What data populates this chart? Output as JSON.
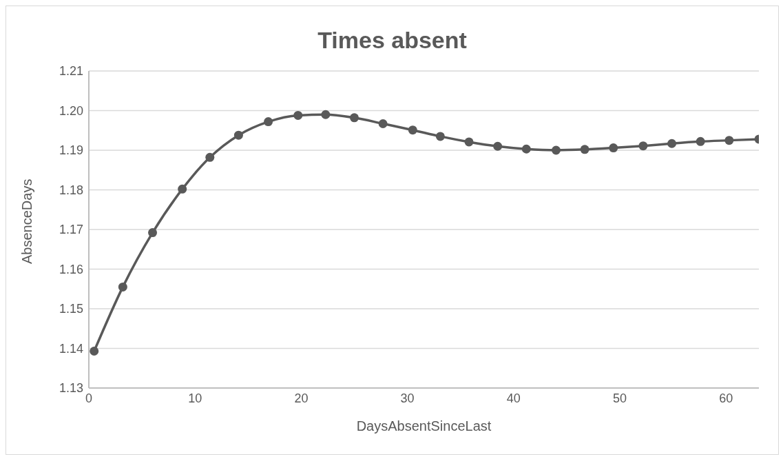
{
  "chart_data": {
    "type": "line",
    "title": "Times absent",
    "xlabel": "DaysAbsentSinceLast",
    "ylabel": "AbsenceDays",
    "x": [
      0.5,
      3.2,
      6.0,
      8.8,
      11.4,
      14.1,
      16.9,
      19.7,
      22.3,
      25.0,
      27.7,
      30.5,
      33.1,
      35.8,
      38.5,
      41.2,
      44.0,
      46.7,
      49.4,
      52.2,
      54.9,
      57.6,
      60.3,
      63.1
    ],
    "series": [
      {
        "color": "#595959",
        "values": [
          1.1393,
          1.1555,
          1.1692,
          1.1802,
          1.1882,
          1.1938,
          1.1972,
          1.1988,
          1.199,
          1.1982,
          1.1967,
          1.1951,
          1.1935,
          1.1921,
          1.191,
          1.1903,
          1.19,
          1.1902,
          1.1906,
          1.1911,
          1.1917,
          1.1922,
          1.1925,
          1.1928
        ]
      }
    ],
    "xlim": [
      0,
      63.1
    ],
    "xticks": [
      0,
      10,
      20,
      30,
      40,
      50,
      60
    ],
    "ylim": [
      1.13,
      1.21
    ],
    "yticks": [
      1.13,
      1.14,
      1.15,
      1.16,
      1.17,
      1.18,
      1.19,
      {
        "value": 1.2,
        "label": "1.20"
      },
      1.21
    ],
    "grid": "y",
    "marker": "circle",
    "legend": false
  }
}
